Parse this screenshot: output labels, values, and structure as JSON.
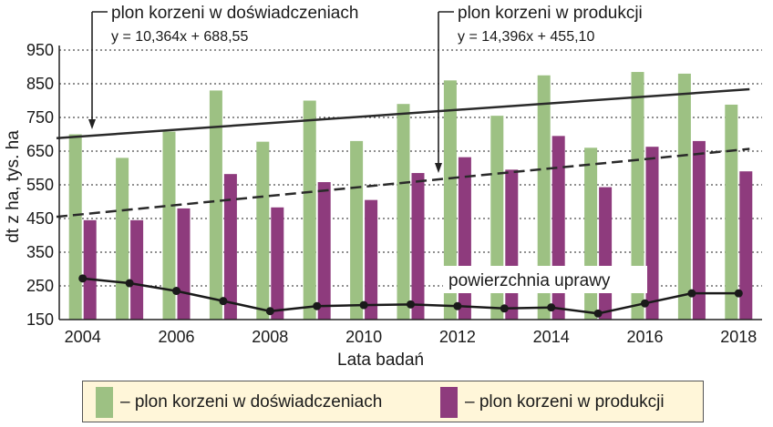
{
  "chart_data": {
    "type": "bar",
    "categories": [
      "2004",
      "2005",
      "2006",
      "2007",
      "2008",
      "2009",
      "2010",
      "2011",
      "2012",
      "2013",
      "2014",
      "2015",
      "2016",
      "2017",
      "2018"
    ],
    "x_tick_labels": [
      "2004",
      "2006",
      "2008",
      "2010",
      "2012",
      "2014",
      "2016",
      "2018"
    ],
    "ylabel": "dt z ha,  tys. ha",
    "xlabel": "Lata badań",
    "ylim": [
      150,
      950
    ],
    "yticks": [
      150,
      250,
      350,
      450,
      550,
      650,
      750,
      850,
      950
    ],
    "grid": "horizontal dotted",
    "series": [
      {
        "name": "plon korzeni w doświadczeniach",
        "color": "#9dc183",
        "values": [
          700,
          630,
          708,
          830,
          678,
          800,
          680,
          790,
          860,
          755,
          875,
          660,
          885,
          880,
          788
        ]
      },
      {
        "name": "plon korzeni w produkcji",
        "color": "#8e3b7d",
        "values": [
          445,
          445,
          480,
          582,
          483,
          558,
          505,
          585,
          632,
          595,
          695,
          543,
          663,
          680,
          590
        ]
      }
    ],
    "line_series": {
      "label": "powierzchnia uprawy",
      "color": "#1a1a1a",
      "values": [
        272,
        258,
        235,
        205,
        175,
        190,
        193,
        195,
        190,
        183,
        186,
        168,
        198,
        228,
        228
      ]
    },
    "trendlines": [
      {
        "label": "plon korzeni w doświadczeniach",
        "equation": "y = 10,364x + 688,55",
        "slope": 10.364,
        "intercept": 688.55,
        "style": "solid"
      },
      {
        "label": "plon korzeni w produkcji",
        "equation": "y = 14,396x + 455,10",
        "slope": 14.396,
        "intercept": 455.1,
        "style": "dashed"
      }
    ],
    "legend": {
      "placement": "bottom",
      "background": "#fff6d9",
      "items": [
        {
          "label": "– plon korzeni w doświadczeniach",
          "color": "#9dc183"
        },
        {
          "label": "– plon korzeni w produkcji",
          "color": "#8e3b7d"
        }
      ]
    }
  }
}
